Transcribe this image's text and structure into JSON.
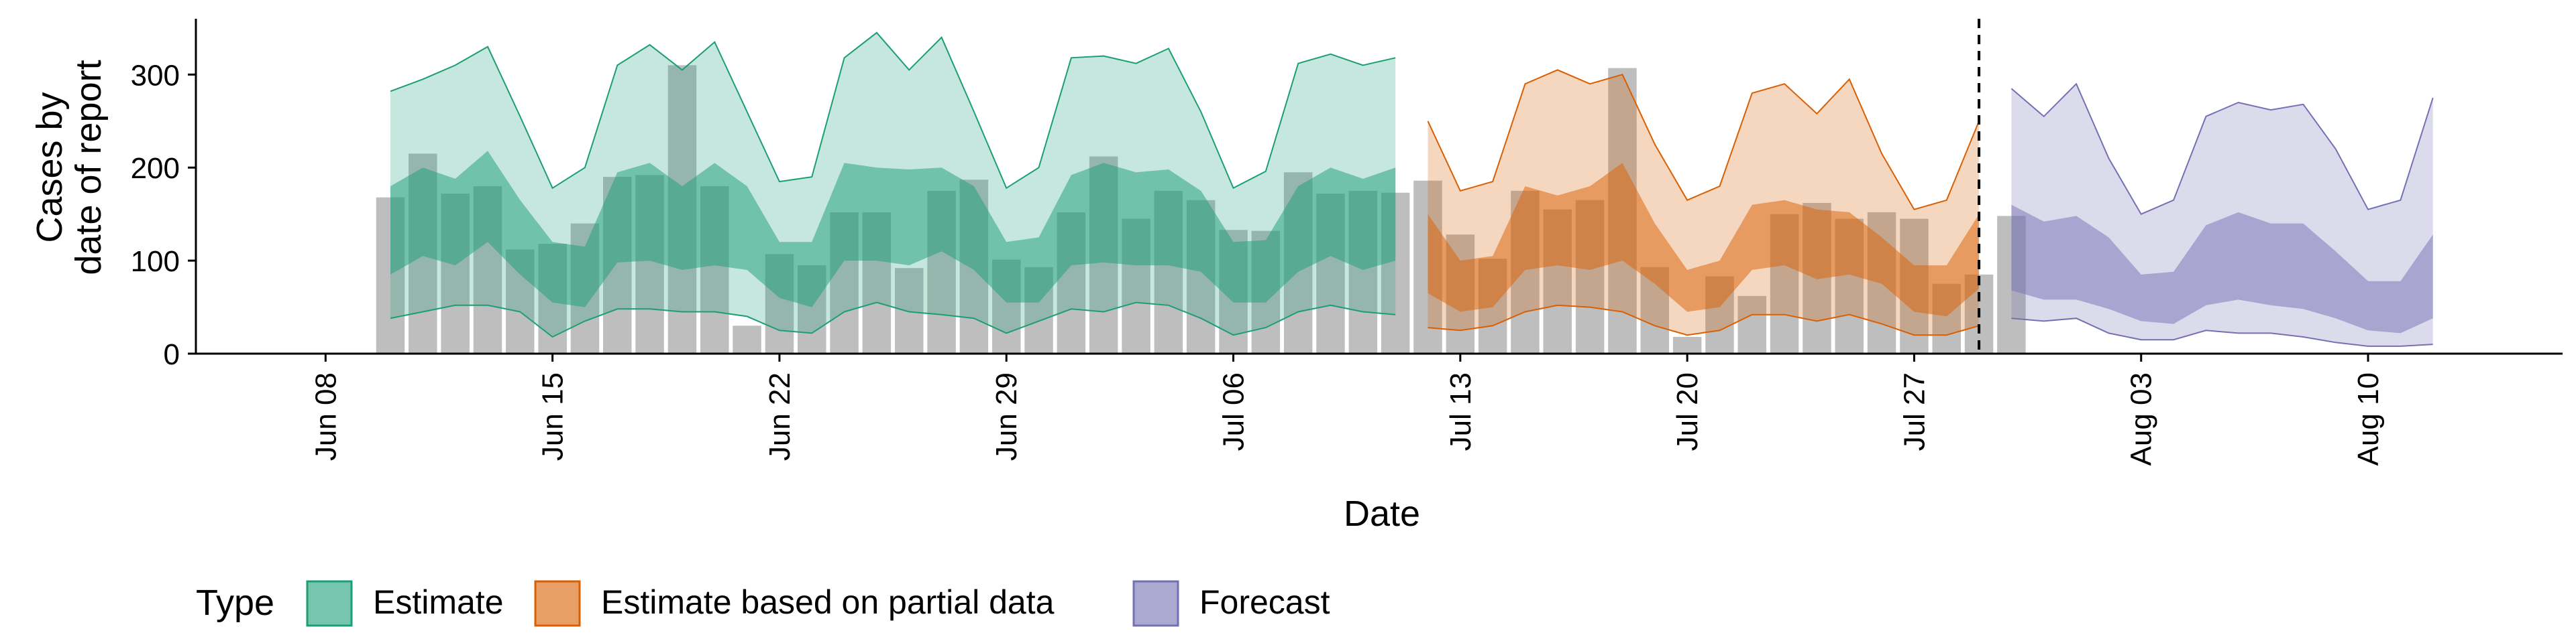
{
  "chart_data": {
    "type": "area",
    "xlabel": "Date",
    "ylabel_lines": [
      "Cases by",
      "date of report"
    ],
    "ylim": [
      0,
      360
    ],
    "yticks": [
      0,
      100,
      200,
      300
    ],
    "xlim": [
      "2020-06-04",
      "2020-08-16"
    ],
    "xticks": [
      {
        "date": "2020-06-08",
        "label": "Jun 08"
      },
      {
        "date": "2020-06-15",
        "label": "Jun 15"
      },
      {
        "date": "2020-06-22",
        "label": "Jun 22"
      },
      {
        "date": "2020-06-29",
        "label": "Jun 29"
      },
      {
        "date": "2020-07-06",
        "label": "Jul 06"
      },
      {
        "date": "2020-07-13",
        "label": "Jul 13"
      },
      {
        "date": "2020-07-20",
        "label": "Jul 20"
      },
      {
        "date": "2020-07-27",
        "label": "Jul 27"
      },
      {
        "date": "2020-08-03",
        "label": "Aug 03"
      },
      {
        "date": "2020-08-10",
        "label": "Aug 10"
      }
    ],
    "forecast_date": "2020-07-29",
    "legend": {
      "title": "Type",
      "position": "bottom-left",
      "items": [
        {
          "label": "Estimate",
          "color": "#1B9E77"
        },
        {
          "label": "Estimate based on partial data",
          "color": "#D95F02"
        },
        {
          "label": "Forecast",
          "color": "#7570B3"
        }
      ]
    },
    "bars": {
      "color": "#b3b3b3",
      "start_date": "2020-06-10",
      "values": [
        168,
        215,
        172,
        180,
        112,
        118,
        140,
        190,
        192,
        310,
        180,
        30,
        107,
        95,
        152,
        152,
        92,
        175,
        187,
        101,
        93,
        152,
        212,
        145,
        175,
        165,
        133,
        132,
        195,
        172,
        175,
        173,
        186,
        128,
        102,
        175,
        155,
        165,
        307,
        93,
        18,
        83,
        62,
        150,
        162,
        145,
        152,
        145,
        75,
        85,
        148
      ]
    },
    "series": [
      {
        "name": "Estimate",
        "color": "#1B9E77",
        "start_date": "2020-06-10",
        "outer_upper": [
          282,
          295,
          310,
          330,
          255,
          178,
          200,
          310,
          332,
          305,
          335,
          260,
          185,
          190,
          318,
          345,
          305,
          340,
          260,
          178,
          200,
          318,
          320,
          312,
          328,
          260,
          178,
          196,
          312,
          322,
          310,
          318
        ],
        "inner_upper": [
          180,
          200,
          188,
          218,
          165,
          120,
          115,
          195,
          205,
          180,
          205,
          180,
          120,
          120,
          205,
          200,
          198,
          200,
          180,
          120,
          125,
          192,
          205,
          195,
          198,
          175,
          120,
          122,
          180,
          200,
          188,
          200
        ],
        "inner_lower": [
          85,
          105,
          95,
          120,
          85,
          55,
          50,
          98,
          100,
          90,
          95,
          90,
          60,
          50,
          100,
          100,
          95,
          110,
          90,
          55,
          55,
          95,
          98,
          95,
          95,
          88,
          55,
          55,
          88,
          105,
          90,
          100
        ],
        "outer_lower": [
          38,
          45,
          52,
          52,
          45,
          18,
          35,
          48,
          48,
          45,
          45,
          40,
          25,
          22,
          45,
          55,
          45,
          42,
          38,
          22,
          35,
          48,
          45,
          55,
          52,
          38,
          20,
          28,
          45,
          52,
          45,
          42
        ]
      },
      {
        "name": "Estimate based on partial data",
        "color": "#D95F02",
        "start_date": "2020-07-12",
        "outer_upper": [
          250,
          175,
          185,
          290,
          305,
          290,
          300,
          225,
          165,
          180,
          280,
          290,
          258,
          295,
          215,
          155,
          165,
          250
        ],
        "inner_upper": [
          150,
          100,
          105,
          180,
          170,
          180,
          205,
          140,
          90,
          100,
          160,
          165,
          155,
          152,
          125,
          95,
          95,
          150
        ],
        "inner_lower": [
          65,
          45,
          50,
          90,
          95,
          90,
          100,
          75,
          45,
          50,
          90,
          95,
          80,
          85,
          75,
          45,
          40,
          70
        ],
        "outer_lower": [
          28,
          25,
          30,
          45,
          52,
          50,
          45,
          30,
          20,
          25,
          42,
          42,
          35,
          42,
          32,
          20,
          20,
          30
        ]
      },
      {
        "name": "Forecast",
        "color": "#7570B3",
        "start_date": "2020-07-30",
        "outer_upper": [
          285,
          255,
          290,
          210,
          150,
          165,
          255,
          270,
          262,
          268,
          220,
          155,
          165,
          275
        ],
        "inner_upper": [
          160,
          142,
          148,
          125,
          85,
          88,
          138,
          152,
          140,
          140,
          110,
          78,
          78,
          128
        ],
        "inner_lower": [
          68,
          58,
          58,
          48,
          35,
          32,
          52,
          58,
          52,
          48,
          38,
          25,
          22,
          38
        ],
        "outer_lower": [
          38,
          35,
          38,
          22,
          15,
          15,
          25,
          22,
          22,
          18,
          12,
          8,
          8,
          10
        ]
      }
    ]
  }
}
